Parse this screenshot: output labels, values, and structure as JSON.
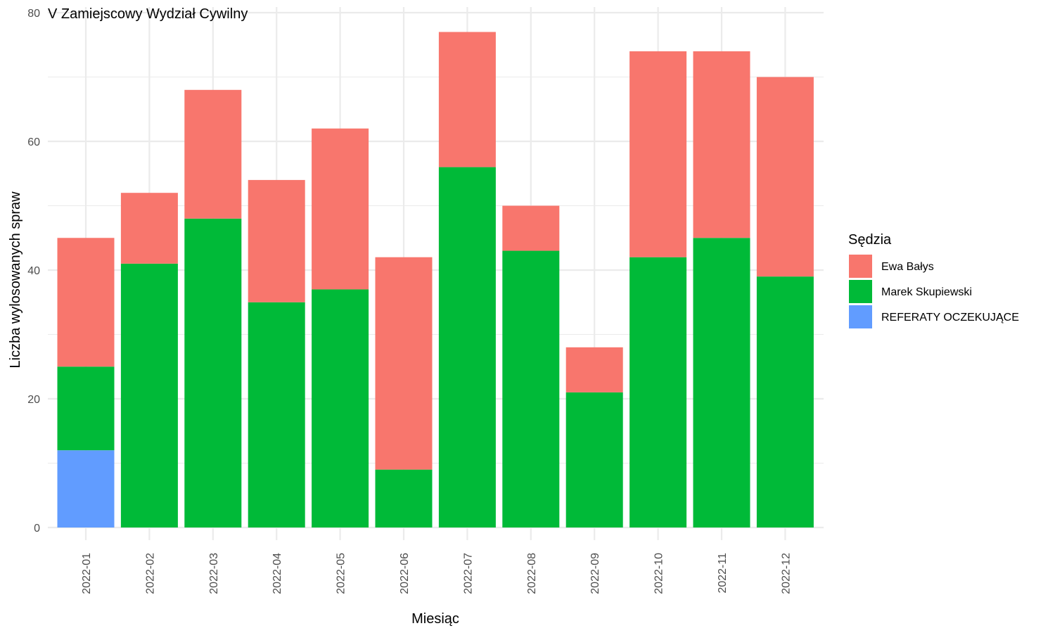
{
  "chart_data": {
    "type": "bar",
    "stacked": true,
    "title": "V Zamiejscowy Wydział Cywilny",
    "xlabel": "Miesiąc",
    "ylabel": "Liczba wylosowanych spraw",
    "ylim": [
      0,
      80
    ],
    "yticks": [
      0,
      20,
      40,
      60,
      80
    ],
    "grid": true,
    "categories": [
      "2022-01",
      "2022-02",
      "2022-03",
      "2022-04",
      "2022-05",
      "2022-06",
      "2022-07",
      "2022-08",
      "2022-09",
      "2022-10",
      "2022-11",
      "2022-12"
    ],
    "series": [
      {
        "name": "REFERATY OCZEKUJĄCE",
        "color": "#619CFF",
        "values": [
          12,
          0,
          0,
          0,
          0,
          0,
          0,
          0,
          0,
          0,
          0,
          0
        ]
      },
      {
        "name": "Marek Skupiewski",
        "color": "#00BA38",
        "values": [
          13,
          41,
          48,
          35,
          37,
          9,
          56,
          43,
          21,
          42,
          45,
          39
        ]
      },
      {
        "name": "Ewa Bałys",
        "color": "#F8766D",
        "values": [
          20,
          11,
          20,
          19,
          25,
          33,
          21,
          7,
          7,
          32,
          29,
          31
        ]
      }
    ],
    "legend": {
      "title": "Sędzia",
      "position": "right",
      "items": [
        "Ewa Bałys",
        "Marek Skupiewski",
        "REFERATY OCZEKUJĄCE"
      ]
    }
  }
}
